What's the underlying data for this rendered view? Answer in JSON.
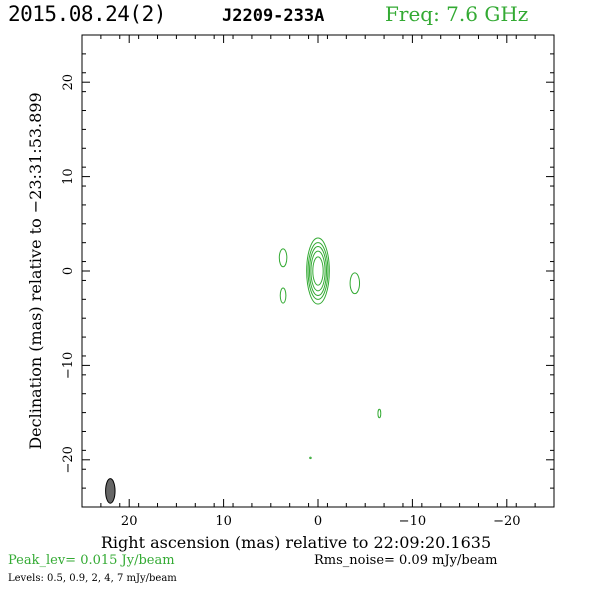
{
  "header": {
    "date": "2015.08.24(2)",
    "source": "J2209-233A",
    "freq": "Freq: 7.6 GHz"
  },
  "chart_data": {
    "type": "contour",
    "xlabel": "Right ascension (mas) relative to 22:09:20.1635",
    "ylabel": "Declination (mas) relative to −23:31:53.899",
    "xlim": [
      25,
      -25
    ],
    "ylim": [
      -25,
      25
    ],
    "xticks": [
      20,
      10,
      0,
      -10,
      -20
    ],
    "yticks": [
      20,
      10,
      0,
      -10,
      -20
    ],
    "xtick_labels": [
      "20",
      "10",
      "0",
      "−10",
      "−20"
    ],
    "ytick_labels": [
      "20",
      "10",
      "0",
      "−10",
      "−20"
    ],
    "contour_color": "#33aa33",
    "beam": {
      "x": 22,
      "y": -23.3,
      "major_mas": 2.6,
      "minor_mas": 1.0,
      "pa_deg": 0,
      "color": "#666666"
    },
    "components": [
      {
        "x": 0.0,
        "y": 0.0,
        "rings": [
          [
            1.2,
            3.5
          ],
          [
            1.05,
            3.0
          ],
          [
            0.9,
            2.6
          ],
          [
            0.75,
            2.1
          ],
          [
            0.55,
            1.5
          ]
        ]
      },
      {
        "x": 3.7,
        "y": 1.4,
        "rings": [
          [
            0.4,
            0.95
          ]
        ]
      },
      {
        "x": 3.7,
        "y": -2.6,
        "rings": [
          [
            0.3,
            0.8
          ]
        ]
      },
      {
        "x": -3.9,
        "y": -1.3,
        "rings": [
          [
            0.5,
            1.1
          ]
        ]
      },
      {
        "x": -6.5,
        "y": -15.1,
        "rings": [
          [
            0.15,
            0.45
          ]
        ]
      },
      {
        "x": 0.8,
        "y": -19.8,
        "rings": [
          [
            0.08,
            0.08
          ]
        ]
      }
    ]
  },
  "footer": {
    "peak": "Peak_lev=  0.015 Jy/beam",
    "rms": "Rms_noise= 0.09 mJy/beam",
    "levels": "Levels: 0.5, 0.9,    2,    4,    7 mJy/beam"
  }
}
